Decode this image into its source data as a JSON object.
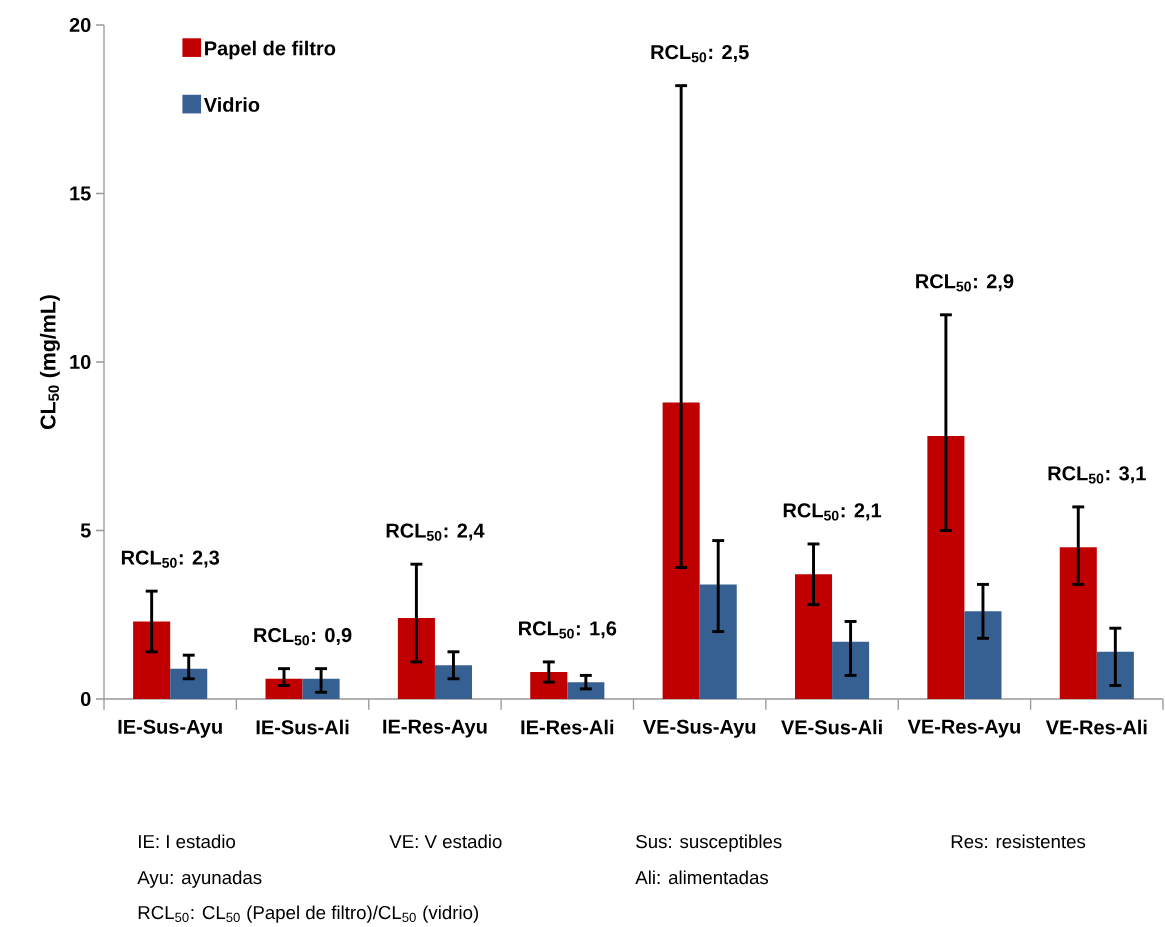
{
  "chart_data": {
    "type": "bar",
    "ylabel": "CL$_{50}$ (mg/mL)",
    "categories": [
      "IE-Sus-Ayu",
      "IE-Sus-Ali",
      "IE-Res-Ayu",
      "IE-Res-Ali",
      "VE-Sus-Ayu",
      "VE-Sus-Ali",
      "VE-Res-Ayu",
      "VE-Res-Ali"
    ],
    "series": [
      {
        "name": "Papel de filtro",
        "color": "#c00000",
        "values": [
          2.3,
          0.6,
          2.4,
          0.8,
          8.8,
          3.7,
          7.8,
          4.5
        ],
        "errors": [
          [
            1.4,
            3.2
          ],
          [
            0.4,
            0.9
          ],
          [
            1.1,
            4.0
          ],
          [
            0.5,
            1.1
          ],
          [
            3.9,
            18.2
          ],
          [
            2.8,
            4.6
          ],
          [
            5.0,
            11.4
          ],
          [
            3.4,
            5.7
          ]
        ]
      },
      {
        "name": "Vidrio",
        "color": "#366092",
        "values": [
          0.9,
          0.6,
          1.0,
          0.5,
          3.4,
          1.7,
          2.6,
          1.4
        ],
        "errors": [
          [
            0.6,
            1.3
          ],
          [
            0.2,
            0.9
          ],
          [
            0.6,
            1.4
          ],
          [
            0.3,
            0.7
          ],
          [
            2.0,
            4.7
          ],
          [
            0.7,
            2.3
          ],
          [
            1.8,
            3.4
          ],
          [
            0.4,
            2.1
          ]
        ]
      }
    ],
    "ylim": [
      0,
      20
    ],
    "yticks": [
      0,
      5,
      10,
      15,
      20
    ],
    "legend": "top left",
    "grid": false,
    "annotations": [
      "RCL$_{50}$: 2,3",
      "RCL$_{50}$: 0,9",
      "RCL$_{50}$: 2,4",
      "RCL$_{50}$: 1,6",
      "RCL$_{50}$: 2,5",
      "RCL$_{50}$: 2,1",
      "RCL$_{50}$: 2,9",
      "RCL$_{50}$: 3,1",
      "IE: I estadio",
      "VE: V estadio",
      "Sus: susceptibles",
      "Res: resistentes",
      "Ayu: ayunadas",
      "Ali: alimentadas",
      "RCL$_{50}$: CL$_{50}$ (Papel de filtro)/CL$_{50}$ (vidrio)"
    ]
  }
}
